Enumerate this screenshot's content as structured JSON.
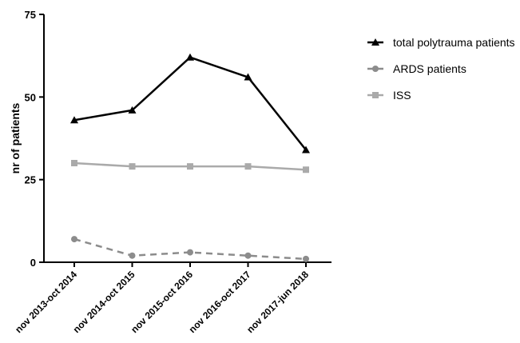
{
  "chart_data": {
    "type": "line",
    "ylabel": "nr of patients",
    "xlabel": "",
    "categories": [
      "nov 2013-oct 2014",
      "nov 2014-oct 2015",
      "nov 2015-oct 2016",
      "nov 2016-oct 2017",
      "nov 2017-jun 2018"
    ],
    "ylim": [
      0,
      75
    ],
    "yticks": [
      0,
      25,
      50,
      75
    ],
    "legend_position": "top-right",
    "grid": false,
    "series": [
      {
        "name": "total polytrauma patients",
        "values": [
          43,
          46,
          62,
          56,
          34
        ],
        "color": "#000000",
        "marker": "triangle",
        "line_style": "solid"
      },
      {
        "name": "ARDS patients",
        "values": [
          7,
          2,
          3,
          2,
          1
        ],
        "color": "#8c8c8c",
        "marker": "circle",
        "line_style": "dashed"
      },
      {
        "name": "ISS",
        "values": [
          30,
          29,
          29,
          29,
          28
        ],
        "color": "#aaaaaa",
        "marker": "square",
        "line_style": "solid"
      }
    ]
  }
}
